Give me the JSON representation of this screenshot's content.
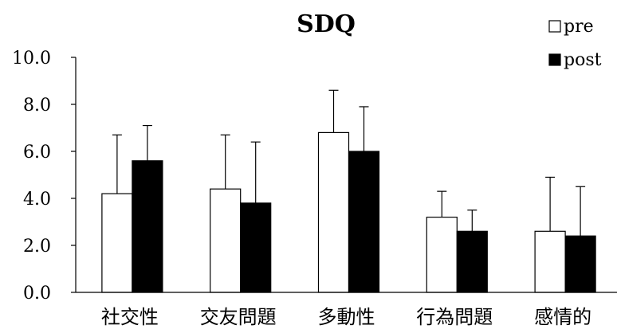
{
  "chart_data": {
    "type": "bar",
    "title": "SDQ",
    "xlabel": "",
    "ylabel": "",
    "categories": [
      "社交性",
      "交友問題",
      "多動性",
      "行為問題",
      "感情的"
    ],
    "ylim": [
      0,
      10
    ],
    "yticks": [
      "0.0",
      "2.0",
      "4.0",
      "6.0",
      "8.0",
      "10.0"
    ],
    "legend_position": "top-right",
    "grid": false,
    "error_bars": true,
    "series": [
      {
        "name": "pre",
        "fill": "#ffffff",
        "stroke": "#000000",
        "values": [
          4.2,
          4.4,
          6.8,
          3.2,
          2.6
        ],
        "errors": [
          2.5,
          2.3,
          1.8,
          1.1,
          2.3
        ]
      },
      {
        "name": "post",
        "fill": "#000000",
        "stroke": "#000000",
        "values": [
          5.6,
          3.8,
          6.0,
          2.6,
          2.4
        ],
        "errors": [
          1.5,
          2.6,
          1.9,
          0.9,
          2.1
        ]
      }
    ]
  }
}
